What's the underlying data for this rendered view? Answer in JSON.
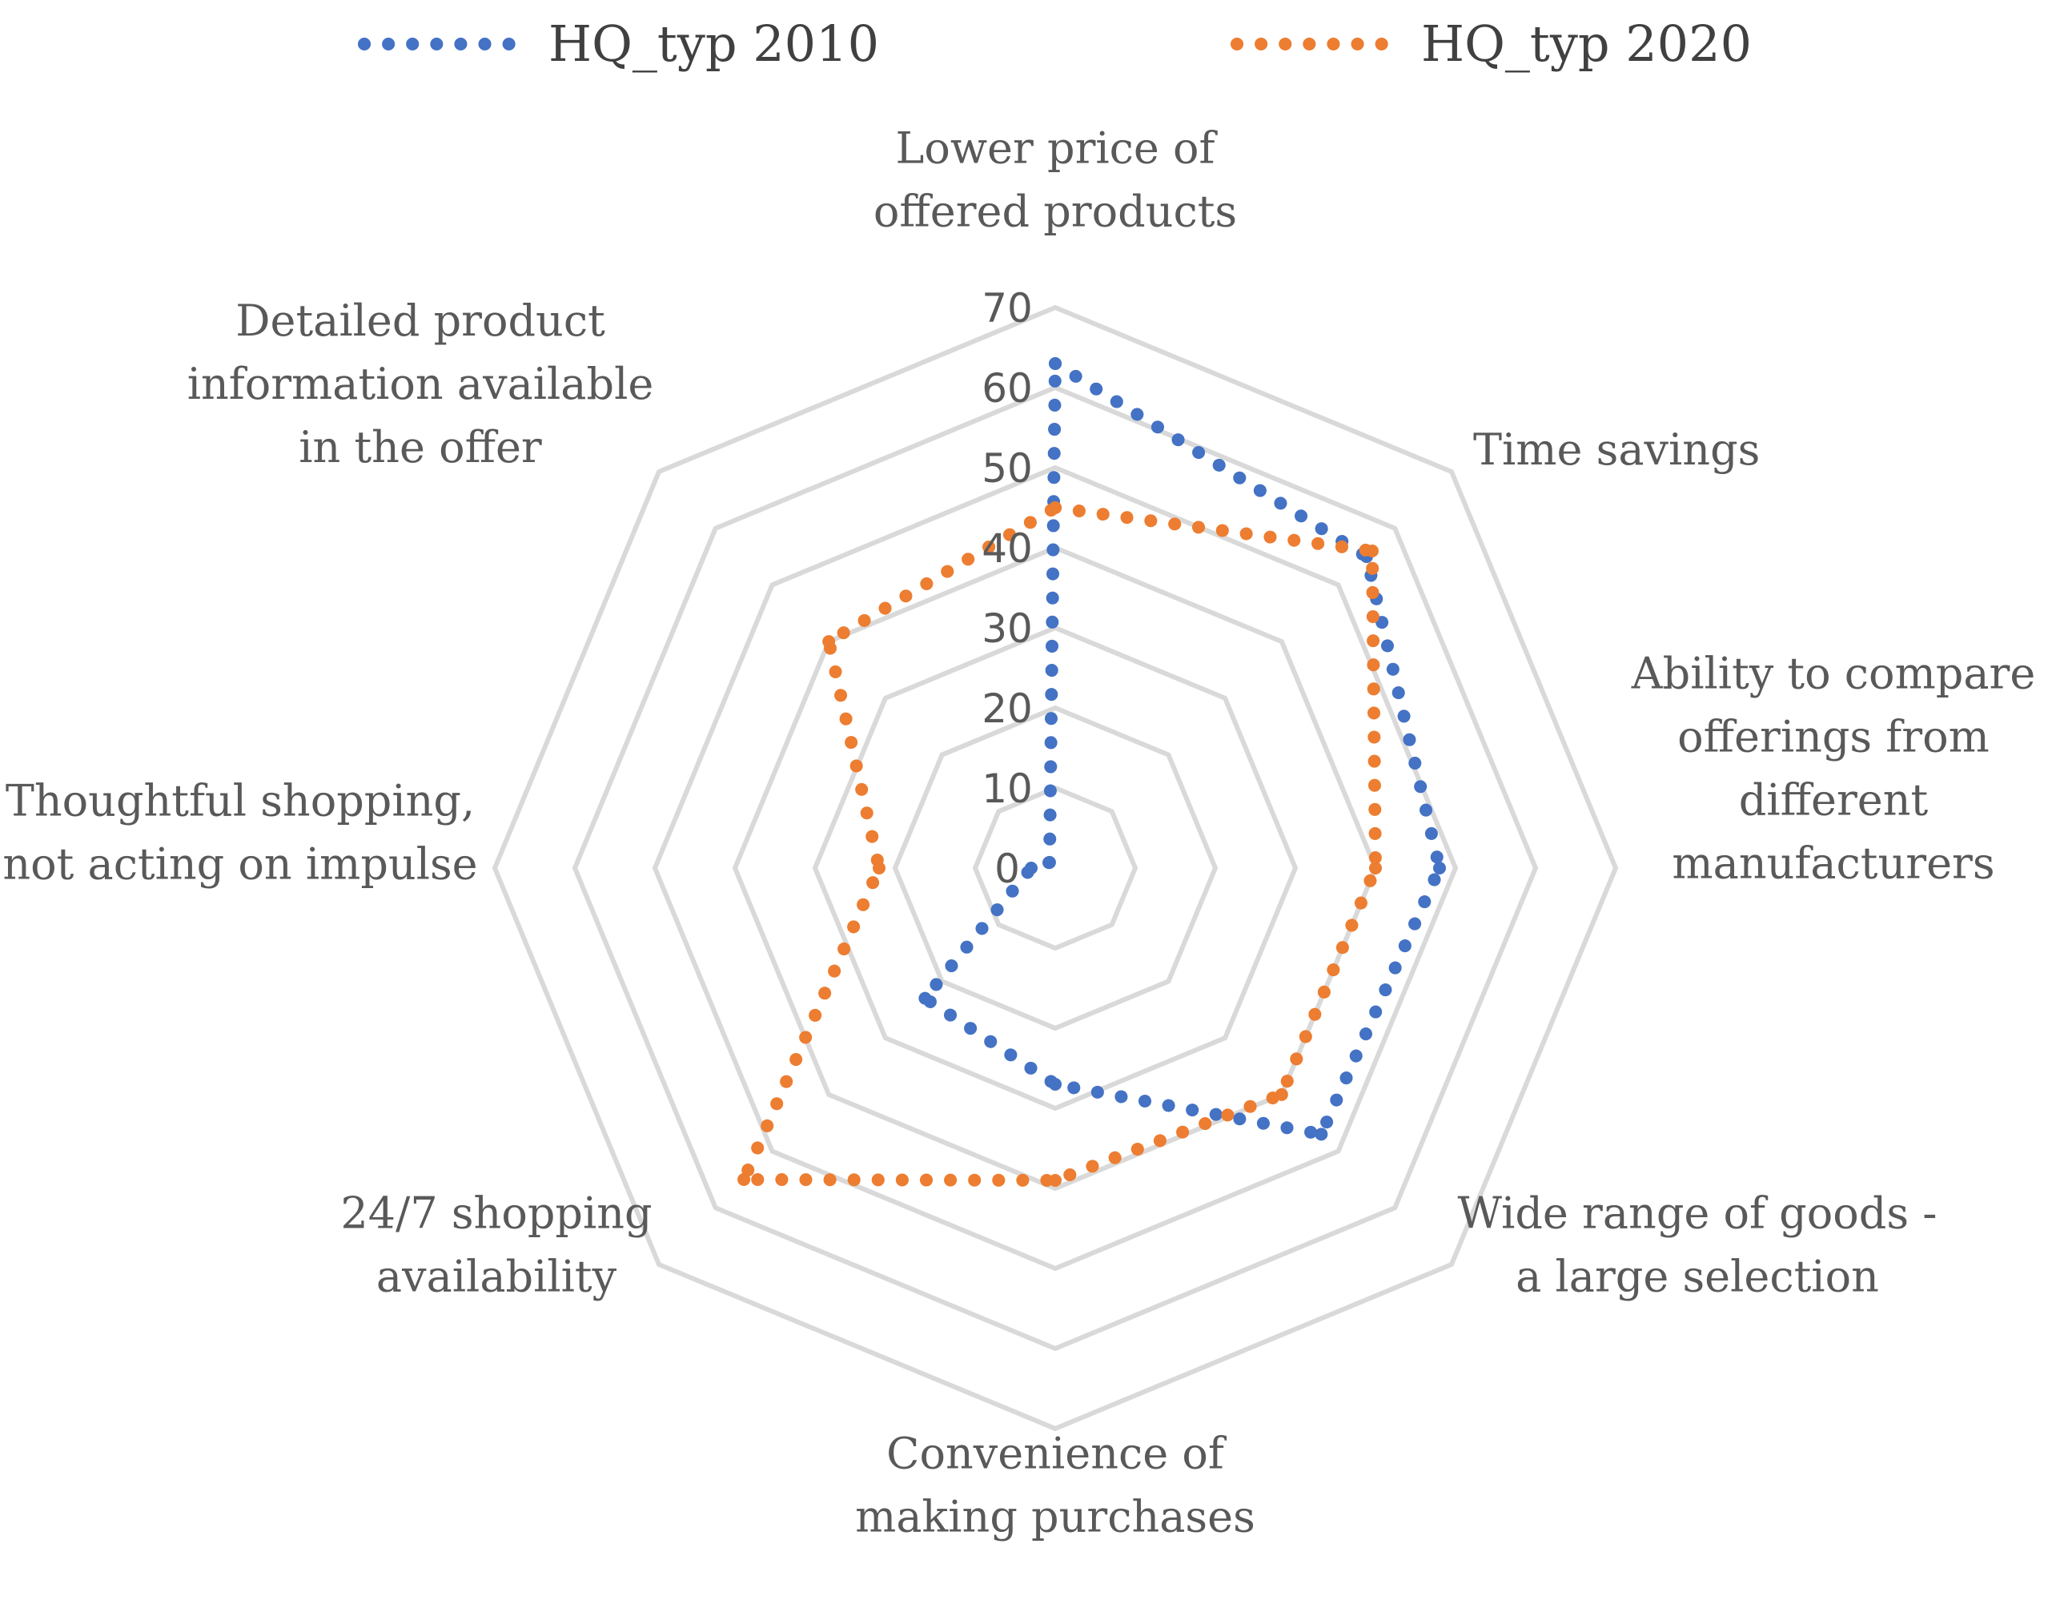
{
  "chart_data": {
    "type": "radar",
    "categories": [
      [
        "Lower price of",
        "offered products"
      ],
      [
        "Time savings"
      ],
      [
        "Ability to compare",
        "offerings from",
        "different",
        "manufacturers"
      ],
      [
        "Wide range of goods -",
        "a large selection"
      ],
      [
        "Convenience of",
        "making purchases"
      ],
      [
        "24/7 shopping",
        "availability"
      ],
      [
        "Thoughtful shopping,",
        "not acting on impulse"
      ],
      [
        "Detailed product",
        "information available",
        "in the offer"
      ]
    ],
    "series": [
      {
        "name": "HQ_typ 2010",
        "color": "#4472c4",
        "values": [
          63,
          55,
          48,
          47,
          27,
          23,
          3,
          1
        ]
      },
      {
        "name": "HQ_typ 2020",
        "color": "#ed7d31",
        "values": [
          45,
          56,
          40,
          40,
          39,
          55,
          22,
          40
        ]
      }
    ],
    "r_ticks": [
      0,
      10,
      20,
      30,
      40,
      50,
      60,
      70
    ],
    "r_range": [
      0,
      70
    ],
    "grid": true,
    "legend_position": "top"
  }
}
